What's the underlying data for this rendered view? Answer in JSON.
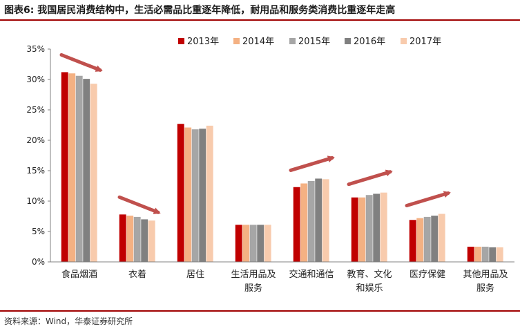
{
  "figure": {
    "title": "图表6: 我国居民消费结构中，生活必需品比重逐年降低，耐用品和服务类消费比重逐年走高",
    "source": "资料来源：Wind，华泰证券研究所"
  },
  "chart_data": {
    "type": "bar",
    "categories": [
      [
        "食品烟酒"
      ],
      [
        "衣着"
      ],
      [
        "居住"
      ],
      [
        "生活用品及",
        "服务"
      ],
      [
        "交通和通信"
      ],
      [
        "教育、文化",
        "和娱乐"
      ],
      [
        "医疗保健"
      ],
      [
        "其他用品及",
        "服务"
      ]
    ],
    "series": [
      {
        "name": "2013年",
        "color": "#c00000",
        "values": [
          31.2,
          7.8,
          22.7,
          6.1,
          12.3,
          10.6,
          6.9,
          2.5
        ]
      },
      {
        "name": "2014年",
        "color": "#f4b183",
        "values": [
          31.0,
          7.6,
          22.1,
          6.1,
          12.9,
          10.6,
          7.2,
          2.5
        ]
      },
      {
        "name": "2015年",
        "color": "#a6a6a6",
        "values": [
          30.6,
          7.4,
          21.8,
          6.1,
          13.3,
          11.0,
          7.4,
          2.5
        ]
      },
      {
        "name": "2016年",
        "color": "#808080",
        "values": [
          30.1,
          7.0,
          21.9,
          6.1,
          13.7,
          11.2,
          7.6,
          2.4
        ]
      },
      {
        "name": "2017年",
        "color": "#f8cbad",
        "values": [
          29.3,
          6.8,
          22.4,
          6.1,
          13.6,
          11.4,
          7.9,
          2.4
        ]
      }
    ],
    "ylim": [
      0,
      35
    ],
    "yticks": [
      "0%",
      "5%",
      "10%",
      "15%",
      "20%",
      "25%",
      "30%",
      "35%"
    ],
    "ytick_values": [
      0,
      5,
      10,
      15,
      20,
      25,
      30,
      35
    ],
    "grid": false,
    "legend_position": "top-right",
    "trend_arrows": [
      {
        "category": 0,
        "direction": "down"
      },
      {
        "category": 1,
        "direction": "down"
      },
      {
        "category": 4,
        "direction": "up"
      },
      {
        "category": 5,
        "direction": "up"
      },
      {
        "category": 6,
        "direction": "up"
      }
    ],
    "arrow_color": "#c0504d"
  }
}
